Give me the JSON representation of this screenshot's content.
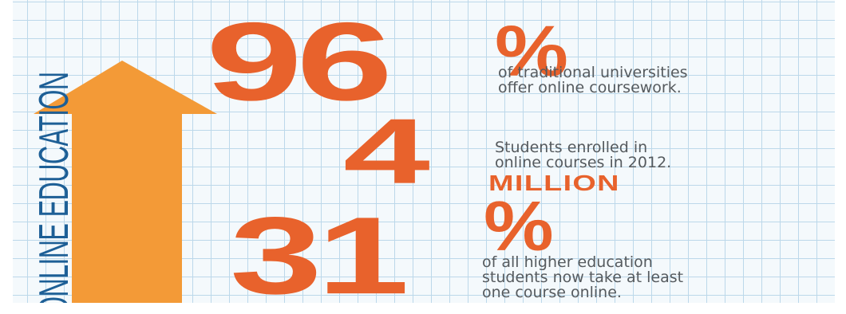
{
  "vertical_title": "ONLINE EDUCATION",
  "colors": {
    "orange_numbers": "#e8622c",
    "arrow_orange": "#f39a37",
    "title_blue": "#1d5f96",
    "caption_gray": "#555a5e",
    "grid_blue": "#bcd8ea"
  },
  "stats": [
    {
      "number": "96",
      "suffix": "%",
      "lines": [
        "of traditional universities",
        "offer online coursework."
      ]
    },
    {
      "number": "4",
      "unit": "MILLION",
      "lines": [
        "Students enrolled in",
        "online courses in 2012."
      ]
    },
    {
      "number": "31",
      "suffix": "%",
      "lines": [
        "of all higher education",
        "students now take at least",
        "one course online."
      ]
    }
  ]
}
